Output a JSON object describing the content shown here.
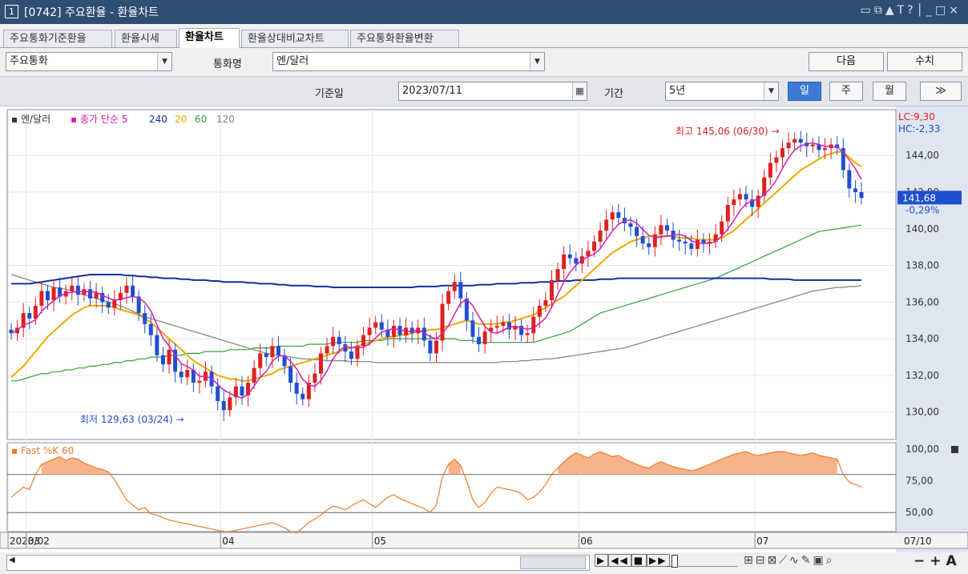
{
  "window": {
    "number": "1",
    "title": "[0742] 주요환율 - 환율차트",
    "tool_icons": [
      "layout-icon",
      "window-icon",
      "pin-icon",
      "text-icon",
      "help-icon",
      "minimize-icon",
      "maximize-icon",
      "close-icon"
    ]
  },
  "tabs": [
    {
      "label": "주요통화기준환율",
      "active": false
    },
    {
      "label": "환율시세",
      "active": false
    },
    {
      "label": "환율차트",
      "active": true
    },
    {
      "label": "환율상대비교차트",
      "active": false
    },
    {
      "label": "주요통화환율변환",
      "active": false
    }
  ],
  "controls": {
    "category_value": "주요통화",
    "currency_label": "통화명",
    "currency_value": "엔/달러",
    "next_button": "다음",
    "values_button": "수치",
    "base_date_label": "기준일",
    "base_date_value": "2023/07/11",
    "period_label": "기간",
    "period_value": "5년",
    "period_buttons": [
      {
        "label": "일",
        "active": true
      },
      {
        "label": "주",
        "active": false
      },
      {
        "label": "월",
        "active": false
      }
    ],
    "expand_icon": "double-chevron-right-icon"
  },
  "chart_data": [
    {
      "type": "candlestick",
      "legend": {
        "series_name": "엔/달러",
        "indicator": "종가 단순",
        "periods": [
          "5",
          "240",
          "20",
          "60",
          "120"
        ]
      },
      "colors": {
        "up": "#e02020",
        "down": "#1f4fd0",
        "ma5": "#d020b0",
        "ma20": "#f0a800",
        "ma60": "#30a040",
        "ma120": "#808080",
        "ma240": "#1030a0"
      },
      "y_ticks": [
        "144,00",
        "142,00",
        "140,00",
        "138,00",
        "136,00",
        "134,00",
        "132,00",
        "130,00"
      ],
      "ylim": [
        128.5,
        146.5
      ],
      "x_labels": [
        "2023/02",
        "03",
        "04",
        "05",
        "06",
        "07"
      ],
      "x_end_label": "07/10",
      "annotations": {
        "high": "최고 145,06 (06/30)",
        "high_value": 145.06,
        "low": "최저 129,63 (03/24)",
        "low_value": 129.63,
        "lc": "LC:9,30",
        "hc": "HC:-2,33",
        "current_price": "141,68",
        "current_value": 141.68,
        "change_pct": "-0,29%"
      },
      "closes": [
        134.3,
        134.6,
        135.4,
        135.1,
        135.8,
        136.6,
        136.1,
        136.8,
        136.3,
        136.6,
        136.9,
        136.4,
        136.7,
        136.2,
        136.5,
        136.0,
        135.7,
        136.1,
        136.5,
        136.9,
        136.3,
        135.4,
        134.8,
        134.2,
        133.1,
        132.6,
        133.4,
        132.2,
        131.9,
        132.3,
        131.6,
        131.7,
        132.2,
        131.4,
        130.6,
        130.1,
        130.8,
        131.4,
        130.9,
        131.6,
        132.4,
        133.2,
        133.0,
        133.6,
        133.1,
        132.5,
        131.6,
        131.0,
        130.7,
        131.6,
        132.1,
        133.2,
        133.6,
        134.1,
        133.7,
        133.3,
        132.9,
        133.6,
        134.2,
        134.6,
        134.9,
        134.5,
        134.1,
        134.7,
        134.2,
        134.6,
        134.3,
        134.6,
        133.9,
        133.2,
        133.9,
        135.9,
        136.6,
        137.1,
        136.2,
        135.0,
        134.1,
        133.7,
        134.4,
        134.6,
        134.7,
        134.9,
        134.5,
        134.7,
        134.2,
        134.3,
        135.2,
        135.8,
        136.1,
        137.2,
        137.8,
        138.6,
        138.4,
        138.1,
        138.5,
        138.8,
        139.3,
        139.9,
        140.5,
        140.9,
        140.6,
        140.3,
        140.1,
        139.6,
        139.2,
        139.0,
        139.7,
        140.2,
        139.9,
        139.4,
        139.3,
        139.2,
        138.9,
        139.4,
        139.2,
        139.3,
        139.7,
        140.4,
        141.3,
        141.6,
        141.9,
        141.6,
        141.2,
        141.8,
        142.8,
        143.6,
        143.9,
        144.4,
        144.7,
        144.9,
        144.7,
        144.5,
        144.6,
        144.3,
        144.4,
        144.6,
        144.4,
        143.2,
        142.2,
        142.0,
        141.68
      ],
      "ma240": [
        137.0,
        137.0,
        137.0,
        137.0,
        137.05,
        137.1,
        137.15,
        137.2,
        137.25,
        137.3,
        137.35,
        137.4,
        137.45,
        137.5,
        137.5,
        137.5,
        137.5,
        137.5,
        137.5,
        137.45,
        137.45,
        137.4,
        137.4,
        137.35,
        137.35,
        137.3,
        137.3,
        137.3,
        137.25,
        137.25,
        137.2,
        137.2,
        137.2,
        137.15,
        137.15,
        137.1,
        137.1,
        137.1,
        137.1,
        137.05,
        137.05,
        137.0,
        137.0,
        137.0,
        136.95,
        136.95,
        136.9,
        136.9,
        136.9,
        136.9,
        136.85,
        136.85,
        136.85,
        136.8,
        136.8,
        136.8,
        136.8,
        136.8,
        136.8,
        136.8,
        136.8,
        136.8,
        136.8,
        136.8,
        136.8,
        136.8,
        136.8,
        136.85,
        136.85,
        136.85,
        136.85,
        136.9,
        136.9,
        136.9,
        136.9,
        136.9,
        136.9,
        136.95,
        136.95,
        136.95,
        137.0,
        137.0,
        137.0,
        137.0,
        137.05,
        137.05,
        137.05,
        137.1,
        137.1,
        137.1,
        137.15,
        137.15,
        137.15,
        137.2,
        137.2,
        137.2,
        137.2,
        137.25,
        137.25,
        137.25,
        137.3,
        137.3,
        137.3,
        137.3,
        137.3,
        137.3,
        137.3,
        137.3,
        137.3,
        137.3,
        137.3,
        137.3,
        137.3,
        137.3,
        137.3,
        137.3,
        137.3,
        137.3,
        137.3,
        137.3,
        137.3,
        137.3,
        137.3,
        137.3,
        137.3,
        137.25,
        137.25,
        137.25,
        137.25,
        137.2,
        137.2,
        137.2,
        137.2,
        137.2,
        137.2,
        137.2,
        137.2,
        137.2,
        137.2,
        137.2,
        137.2
      ],
      "ma120": [
        137.5,
        137.4,
        137.3,
        137.2,
        137.1,
        137.0,
        136.9,
        136.8,
        136.75,
        136.7,
        136.6,
        136.5,
        136.4,
        136.3,
        136.2,
        136.1,
        136.0,
        135.9,
        135.8,
        135.65,
        135.5,
        135.35,
        135.2,
        135.1,
        135.0,
        134.9,
        134.8,
        134.7,
        134.6,
        134.5,
        134.4,
        134.3,
        134.2,
        134.1,
        134.0,
        133.9,
        133.8,
        133.7,
        133.6,
        133.5,
        133.4,
        133.3,
        133.2,
        133.15,
        133.1,
        133.05,
        133.0,
        132.95,
        132.9,
        132.9,
        132.85,
        132.85,
        132.8,
        132.8,
        132.8,
        132.8,
        132.75,
        132.75,
        132.75,
        132.75,
        132.7,
        132.7,
        132.7,
        132.7,
        132.7,
        132.7,
        132.7,
        132.7,
        132.7,
        132.7,
        132.7,
        132.7,
        132.7,
        132.7,
        132.7,
        132.7,
        132.7,
        132.7,
        132.7,
        132.7,
        132.7,
        132.75,
        132.75,
        132.75,
        132.8,
        132.8,
        132.85,
        132.85,
        132.9,
        132.9,
        132.95,
        133.0,
        133.05,
        133.1,
        133.15,
        133.2,
        133.25,
        133.3,
        133.35,
        133.4,
        133.45,
        133.5,
        133.6,
        133.7,
        133.8,
        133.9,
        134.0,
        134.1,
        134.2,
        134.3,
        134.4,
        134.5,
        134.6,
        134.7,
        134.8,
        134.9,
        135.0,
        135.1,
        135.2,
        135.3,
        135.4,
        135.5,
        135.6,
        135.7,
        135.8,
        135.9,
        136.0,
        136.1,
        136.2,
        136.3,
        136.4,
        136.5,
        136.6,
        136.65,
        136.7,
        136.75,
        136.8,
        136.8,
        136.85,
        136.85,
        136.9
      ],
      "ma60": [
        131.7,
        131.7,
        131.8,
        131.9,
        132.0,
        132.1,
        132.1,
        132.2,
        132.2,
        132.3,
        132.3,
        132.4,
        132.4,
        132.5,
        132.5,
        132.6,
        132.6,
        132.7,
        132.7,
        132.8,
        132.8,
        132.9,
        132.9,
        133.0,
        133.0,
        133.0,
        133.1,
        133.1,
        133.1,
        133.2,
        133.2,
        133.2,
        133.3,
        133.3,
        133.3,
        133.3,
        133.4,
        133.4,
        133.4,
        133.4,
        133.5,
        133.5,
        133.5,
        133.5,
        133.6,
        133.6,
        133.6,
        133.6,
        133.6,
        133.7,
        133.7,
        133.7,
        133.7,
        133.8,
        133.8,
        133.8,
        133.8,
        133.8,
        133.9,
        133.9,
        133.9,
        133.9,
        134.0,
        134.0,
        134.0,
        134.0,
        134.0,
        134.0,
        134.0,
        134.0,
        134.0,
        134.0,
        134.0,
        134.0,
        133.9,
        133.9,
        133.9,
        133.8,
        133.8,
        133.8,
        133.8,
        133.8,
        133.8,
        133.8,
        133.8,
        133.8,
        133.8,
        133.9,
        134.0,
        134.1,
        134.2,
        134.3,
        134.4,
        134.6,
        134.8,
        135.0,
        135.2,
        135.4,
        135.5,
        135.6,
        135.7,
        135.8,
        135.9,
        136.0,
        136.1,
        136.2,
        136.3,
        136.4,
        136.5,
        136.6,
        136.7,
        136.8,
        136.9,
        137.0,
        137.1,
        137.2,
        137.3,
        137.45,
        137.6,
        137.75,
        137.9,
        138.05,
        138.2,
        138.35,
        138.5,
        138.65,
        138.8,
        138.95,
        139.1,
        139.25,
        139.4,
        139.55,
        139.7,
        139.85,
        139.9,
        139.95,
        140.0,
        140.05,
        140.1,
        140.15,
        140.2
      ],
      "ma20": [
        131.9,
        132.2,
        132.5,
        132.9,
        133.3,
        133.7,
        134.1,
        134.4,
        134.7,
        135.0,
        135.3,
        135.5,
        135.7,
        135.8,
        135.8,
        135.8,
        135.8,
        135.7,
        135.6,
        135.5,
        135.4,
        135.3,
        135.1,
        134.9,
        134.6,
        134.3,
        134.0,
        133.7,
        133.4,
        133.1,
        132.8,
        132.6,
        132.4,
        132.2,
        132.0,
        131.9,
        131.8,
        131.8,
        131.7,
        131.7,
        131.8,
        131.9,
        132.0,
        132.1,
        132.3,
        132.4,
        132.5,
        132.6,
        132.7,
        132.8,
        132.9,
        133.0,
        133.1,
        133.2,
        133.3,
        133.4,
        133.5,
        133.6,
        133.7,
        133.8,
        133.9,
        134.0,
        134.1,
        134.1,
        134.2,
        134.2,
        134.3,
        134.4,
        134.4,
        134.5,
        134.5,
        134.6,
        134.7,
        134.8,
        134.9,
        135.0,
        134.9,
        134.8,
        134.8,
        134.8,
        134.8,
        134.9,
        134.9,
        135.0,
        135.1,
        135.2,
        135.3,
        135.5,
        135.7,
        135.9,
        136.1,
        136.3,
        136.6,
        136.9,
        137.2,
        137.5,
        137.8,
        138.1,
        138.4,
        138.7,
        138.9,
        139.1,
        139.3,
        139.4,
        139.5,
        139.6,
        139.6,
        139.6,
        139.6,
        139.6,
        139.5,
        139.5,
        139.5,
        139.4,
        139.4,
        139.4,
        139.4,
        139.5,
        139.7,
        139.9,
        140.2,
        140.5,
        140.8,
        141.1,
        141.4,
        141.7,
        142.0,
        142.3,
        142.6,
        142.9,
        143.2,
        143.4,
        143.6,
        143.8,
        144.0,
        144.1,
        144.2,
        144.2,
        143.9,
        143.6,
        143.4
      ]
    },
    {
      "type": "area",
      "title": "Fast %K 60",
      "color": "#f07a2a",
      "y_ticks": [
        "100,00",
        "75,00",
        "50,00"
      ],
      "ylim": [
        35,
        105
      ],
      "values": [
        62,
        66,
        70,
        68,
        80,
        88,
        90,
        92,
        94,
        91,
        93,
        92,
        89,
        87,
        85,
        84,
        82,
        76,
        68,
        60,
        56,
        52,
        54,
        49,
        48,
        46,
        44,
        43,
        42,
        41,
        40,
        39,
        38,
        37,
        36,
        35,
        35,
        36,
        37,
        38,
        39,
        40,
        41,
        42,
        40,
        38,
        35,
        34,
        38,
        42,
        45,
        48,
        52,
        55,
        54,
        52,
        55,
        58,
        60,
        57,
        54,
        58,
        62,
        64,
        61,
        59,
        57,
        55,
        53,
        50,
        56,
        78,
        88,
        92,
        87,
        75,
        60,
        54,
        58,
        65,
        70,
        69,
        68,
        67,
        65,
        60,
        62,
        66,
        72,
        80,
        85,
        90,
        94,
        97,
        95,
        93,
        96,
        98,
        96,
        94,
        95,
        92,
        90,
        88,
        86,
        85,
        88,
        90,
        88,
        86,
        85,
        84,
        83,
        84,
        86,
        88,
        90,
        92,
        94,
        96,
        97,
        98,
        96,
        95,
        96,
        97,
        98,
        98,
        97,
        96,
        95,
        96,
        97,
        95,
        94,
        93,
        92,
        80,
        74,
        72,
        70
      ]
    }
  ],
  "toolbar": {
    "icons": [
      "play-icon",
      "rewind-icon",
      "stop-icon",
      "fast-forward-icon",
      "zoom-slider-icon",
      "grid-icon",
      "window-split-icon",
      "crosshair-icon",
      "line-tool-icon",
      "wave-tool-icon",
      "brush-icon",
      "save-icon",
      "search-icon",
      "minus-icon",
      "plus-icon",
      "font-icon"
    ],
    "symbols": {
      "minus": "−",
      "plus": "+",
      "font": "A"
    }
  }
}
